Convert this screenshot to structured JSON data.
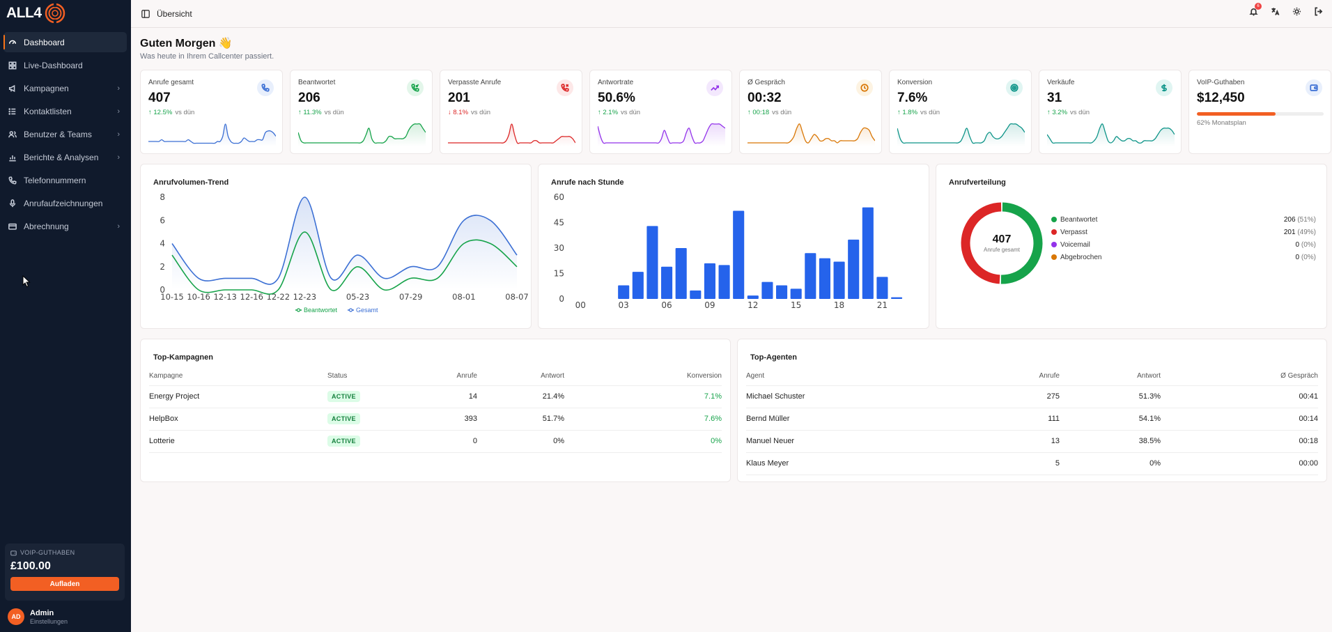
{
  "brand": {
    "name": "ALL4"
  },
  "sidebar": {
    "items": [
      {
        "label": "Dashboard",
        "icon": "gauge-icon",
        "active": true,
        "expandable": false
      },
      {
        "label": "Live-Dashboard",
        "icon": "grid-icon",
        "active": false,
        "expandable": false
      },
      {
        "label": "Kampagnen",
        "icon": "megaphone-icon",
        "active": false,
        "expandable": true
      },
      {
        "label": "Kontaktlisten",
        "icon": "list-icon",
        "active": false,
        "expandable": true
      },
      {
        "label": "Benutzer & Teams",
        "icon": "users-icon",
        "active": false,
        "expandable": true
      },
      {
        "label": "Berichte & Analysen",
        "icon": "chart-icon",
        "active": false,
        "expandable": true
      },
      {
        "label": "Telefonnummern",
        "icon": "phone-icon",
        "active": false,
        "expandable": false
      },
      {
        "label": "Anrufaufzeichnungen",
        "icon": "mic-icon",
        "active": false,
        "expandable": false
      },
      {
        "label": "Abrechnung",
        "icon": "card-icon",
        "active": false,
        "expandable": true
      }
    ],
    "voip": {
      "title": "VOIP-GUTHABEN",
      "amount": "£100.00",
      "button": "Aufladen"
    },
    "user": {
      "initials": "AD",
      "name": "Admin",
      "sub": "Einstellungen"
    }
  },
  "topbar": {
    "breadcrumb": "Übersicht",
    "notification_count": "6"
  },
  "greeting": {
    "title": "Guten Morgen 👋",
    "subtitle": "Was heute in Ihrem Callcenter passiert."
  },
  "kpis": [
    {
      "label": "Anrufe gesamt",
      "value": "407",
      "delta": "↑ 12.5%",
      "trend": "up",
      "vs": "vs dün",
      "color": "#3b6fd4",
      "icon_bg": "#e8effc",
      "icon": "phone-icon",
      "spark": [
        2,
        2,
        2,
        2,
        2,
        3,
        2,
        2,
        2,
        2,
        2,
        2,
        2,
        2,
        2,
        3,
        2,
        1,
        1,
        1,
        1,
        1,
        1,
        1,
        1,
        1,
        2,
        2,
        5,
        12,
        5,
        2,
        1,
        1,
        1,
        2,
        4,
        3,
        2,
        2,
        2,
        3,
        3,
        3,
        7,
        8,
        8,
        7,
        5
      ]
    },
    {
      "label": "Beantwortet",
      "value": "206",
      "delta": "↑ 11.3%",
      "trend": "up",
      "vs": "vs dün",
      "color": "#16a34a",
      "icon_bg": "#e3f6ea",
      "icon": "phone-in-icon",
      "spark": [
        6,
        2,
        1,
        1,
        1,
        1,
        1,
        1,
        1,
        1,
        1,
        1,
        1,
        1,
        1,
        1,
        1,
        1,
        1,
        1,
        1,
        1,
        1,
        2,
        5,
        8,
        3,
        1,
        1,
        1,
        1,
        2,
        4,
        4,
        3,
        3,
        3,
        3,
        4,
        7,
        9,
        10,
        10,
        10,
        8,
        6
      ]
    },
    {
      "label": "Verpasste Anrufe",
      "value": "201",
      "delta": "↓ 8.1%",
      "trend": "down",
      "vs": "vs dün",
      "color": "#dc2626",
      "icon_bg": "#fde8e8",
      "icon": "phone-miss-icon",
      "spark": [
        1,
        1,
        1,
        1,
        1,
        1,
        1,
        1,
        1,
        1,
        1,
        1,
        1,
        1,
        1,
        1,
        1,
        1,
        1,
        1,
        1,
        2,
        5,
        10,
        5,
        1,
        1,
        1,
        1,
        1,
        1,
        2,
        2,
        1,
        1,
        1,
        1,
        1,
        1,
        2,
        3,
        4,
        4,
        4,
        4,
        3,
        1
      ]
    },
    {
      "label": "Antwortrate",
      "value": "50.6%",
      "delta": "↑ 2.1%",
      "trend": "up",
      "vs": "vs dün",
      "color": "#9333ea",
      "icon_bg": "#f3e8fd",
      "icon": "trend-up-icon",
      "spark": [
        9,
        4,
        1,
        1,
        1,
        1,
        1,
        1,
        1,
        1,
        1,
        1,
        1,
        1,
        1,
        1,
        1,
        1,
        1,
        1,
        1,
        1,
        1,
        3,
        7,
        4,
        1,
        1,
        1,
        1,
        1,
        2,
        6,
        8,
        4,
        1,
        1,
        1,
        2,
        5,
        8,
        10,
        10,
        10,
        10,
        9,
        8
      ]
    },
    {
      "label": "Ø Gespräch",
      "value": "00:32",
      "delta": "↑ 00:18",
      "trend": "up",
      "vs": "vs dün",
      "color": "#d97706",
      "icon_bg": "#fdf3e2",
      "icon": "clock-icon",
      "spark": [
        1,
        1,
        1,
        1,
        1,
        1,
        1,
        1,
        1,
        1,
        1,
        1,
        1,
        1,
        1,
        2,
        4,
        8,
        10,
        6,
        2,
        1,
        3,
        5,
        4,
        2,
        2,
        3,
        3,
        2,
        2,
        1,
        2,
        2,
        2,
        2,
        2,
        2,
        3,
        6,
        8,
        8,
        7,
        4,
        2
      ]
    },
    {
      "label": "Konversion",
      "value": "7.6%",
      "delta": "↑ 1.8%",
      "trend": "up",
      "vs": "vs dün",
      "color": "#0d9488",
      "icon_bg": "#e0f5f2",
      "icon": "target-icon",
      "spark": [
        8,
        3,
        1,
        1,
        1,
        1,
        1,
        1,
        1,
        1,
        1,
        1,
        1,
        1,
        1,
        1,
        1,
        1,
        1,
        1,
        1,
        1,
        2,
        5,
        8,
        4,
        1,
        1,
        1,
        1,
        2,
        5,
        6,
        4,
        3,
        3,
        4,
        6,
        8,
        10,
        10,
        10,
        9,
        8,
        6
      ]
    },
    {
      "label": "Verkäufe",
      "value": "31",
      "delta": "↑ 3.2%",
      "trend": "up",
      "vs": "vs dün",
      "color": "#0d9488",
      "icon_bg": "#e0f5f2",
      "icon": "dollar-icon",
      "spark": [
        5,
        3,
        1,
        1,
        1,
        1,
        1,
        1,
        1,
        1,
        1,
        1,
        1,
        1,
        1,
        1,
        1,
        2,
        4,
        8,
        10,
        6,
        2,
        1,
        2,
        4,
        3,
        2,
        2,
        3,
        3,
        2,
        2,
        1,
        1,
        2,
        2,
        2,
        2,
        3,
        5,
        7,
        8,
        8,
        8,
        7,
        5
      ]
    },
    {
      "label": "VoIP-Guthaben",
      "value": "$12,450",
      "progress_percent": 62,
      "progress_label": "62% Monatsplan",
      "color": "#3b6fd4",
      "icon_bg": "#e8effc",
      "icon": "wallet-icon"
    }
  ],
  "trend_chart": {
    "title": "Anrufvolumen-Trend",
    "legend": [
      "Beantwortet",
      "Gesamt"
    ]
  },
  "hour_chart": {
    "title": "Anrufe nach Stunde"
  },
  "distribution": {
    "title": "Anrufverteilung",
    "total": "407",
    "total_label": "Anrufe gesamt",
    "items": [
      {
        "label": "Beantwortet",
        "value": "206",
        "pct": "(51%)",
        "color": "#16a34a"
      },
      {
        "label": "Verpasst",
        "value": "201",
        "pct": "(49%)",
        "color": "#dc2626"
      },
      {
        "label": "Voicemail",
        "value": "0",
        "pct": "(0%)",
        "color": "#9333ea"
      },
      {
        "label": "Abgebrochen",
        "value": "0",
        "pct": "(0%)",
        "color": "#d97706"
      }
    ]
  },
  "campaigns": {
    "title": "Top-Kampagnen",
    "headers": [
      "Kampagne",
      "Status",
      "Anrufe",
      "Antwort",
      "Konversion"
    ],
    "rows": [
      {
        "name": "Energy Project",
        "status": "ACTIVE",
        "calls": "14",
        "answer": "21.4%",
        "conversion": "7.1%"
      },
      {
        "name": "HelpBox",
        "status": "ACTIVE",
        "calls": "393",
        "answer": "51.7%",
        "conversion": "7.6%"
      },
      {
        "name": "Lotterie",
        "status": "ACTIVE",
        "calls": "0",
        "answer": "0%",
        "conversion": "0%"
      }
    ]
  },
  "agents": {
    "title": "Top-Agenten",
    "headers": [
      "Agent",
      "Anrufe",
      "Antwort",
      "Ø Gespräch"
    ],
    "rows": [
      {
        "name": "Michael Schuster",
        "calls": "275",
        "answer": "51.3%",
        "duration": "00:41"
      },
      {
        "name": "Bernd Müller",
        "calls": "111",
        "answer": "54.1%",
        "duration": "00:14"
      },
      {
        "name": "Manuel Neuer",
        "calls": "13",
        "answer": "38.5%",
        "duration": "00:18"
      },
      {
        "name": "Klaus Meyer",
        "calls": "5",
        "answer": "0%",
        "duration": "00:00"
      }
    ]
  },
  "chart_data": [
    {
      "type": "line",
      "title": "Anrufvolumen-Trend",
      "x": [
        "10-15",
        "10-16",
        "12-13",
        "12-16",
        "12-22",
        "12-23",
        "01-10",
        "05-23",
        "06-15",
        "07-29",
        "07-31",
        "08-01",
        "08-05",
        "08-07"
      ],
      "x_tick_labels": [
        "10-15",
        "10-16",
        "12-13",
        "12-16",
        "12-22",
        "12-23",
        "05-23",
        "07-29",
        "08-01",
        "08-07"
      ],
      "series": [
        {
          "name": "Gesamt",
          "color": "#3b6fd4",
          "values": [
            4,
            1,
            1,
            1,
            1,
            8,
            1,
            3,
            1,
            2,
            2,
            6,
            6,
            3
          ]
        },
        {
          "name": "Beantwortet",
          "color": "#16a34a",
          "values": [
            3,
            0,
            0,
            0,
            0,
            5,
            0,
            2,
            0,
            1,
            1,
            4,
            4,
            2
          ]
        }
      ],
      "ylim": [
        0,
        8
      ],
      "y_ticks": [
        0,
        2,
        4,
        6,
        8
      ],
      "legend": "bottom",
      "grid": false
    },
    {
      "type": "bar",
      "title": "Anrufe nach Stunde",
      "categories": [
        "00",
        "01",
        "02",
        "03",
        "04",
        "05",
        "06",
        "07",
        "08",
        "09",
        "10",
        "11",
        "12",
        "13",
        "14",
        "15",
        "16",
        "17",
        "18",
        "19",
        "20",
        "21",
        "22",
        "23"
      ],
      "x_tick_labels": [
        "00",
        "03",
        "06",
        "09",
        "12",
        "15",
        "18",
        "21"
      ],
      "values": [
        0,
        0,
        0,
        8,
        16,
        43,
        19,
        30,
        5,
        21,
        20,
        52,
        2,
        10,
        8,
        6,
        27,
        24,
        22,
        35,
        54,
        13,
        1,
        0
      ],
      "ylim": [
        0,
        60
      ],
      "y_ticks": [
        0,
        15,
        30,
        45,
        60
      ],
      "color": "#2563eb",
      "grid": false
    },
    {
      "type": "pie",
      "title": "Anrufverteilung",
      "labels": [
        "Beantwortet",
        "Verpasst",
        "Voicemail",
        "Abgebrochen"
      ],
      "values": [
        206,
        201,
        0,
        0
      ],
      "colors": [
        "#16a34a",
        "#dc2626",
        "#9333ea",
        "#d97706"
      ],
      "center_text": "407",
      "legend": "right"
    }
  ]
}
